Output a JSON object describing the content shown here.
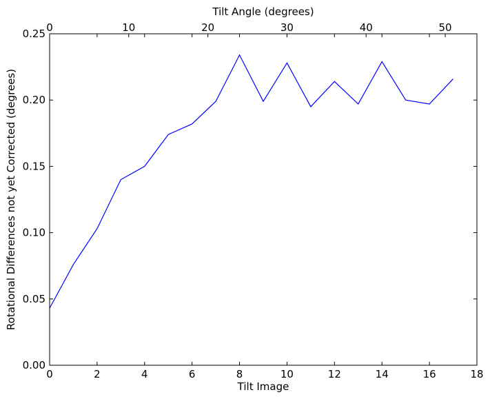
{
  "chart_data": {
    "type": "line",
    "xlabel": "Tilt Image",
    "x2label": "Tilt Angle (degrees)",
    "ylabel": "Rotational Differences not yet Corrected (degrees)",
    "xlim": [
      0,
      18
    ],
    "x2lim": [
      0,
      54
    ],
    "ylim": [
      0,
      0.25
    ],
    "xticks": [
      "0",
      "2",
      "4",
      "6",
      "8",
      "10",
      "12",
      "14",
      "16",
      "18"
    ],
    "x2ticks": [
      "0",
      "10",
      "20",
      "30",
      "40",
      "50"
    ],
    "yticks": [
      "0.00",
      "0.05",
      "0.10",
      "0.15",
      "0.20",
      "0.25"
    ],
    "grid": false,
    "line_color": "#0000ff",
    "series": [
      {
        "x": [
          0,
          1,
          2,
          3,
          4,
          5,
          6,
          7,
          8,
          9,
          10,
          11,
          12,
          13,
          14,
          15,
          16,
          17
        ],
        "y": [
          0.043,
          0.076,
          0.103,
          0.14,
          0.15,
          0.174,
          0.182,
          0.199,
          0.234,
          0.199,
          0.228,
          0.195,
          0.214,
          0.197,
          0.229,
          0.2,
          0.197,
          0.216
        ]
      }
    ]
  }
}
